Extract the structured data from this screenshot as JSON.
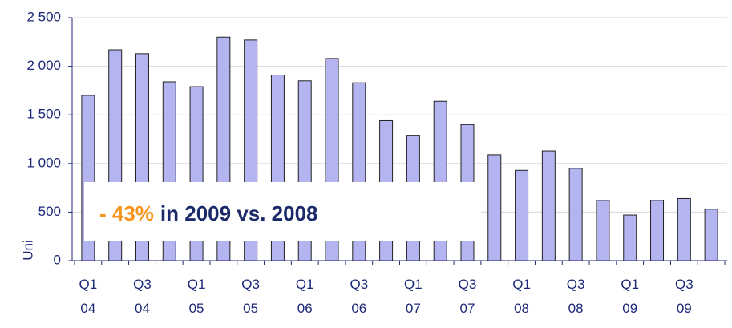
{
  "chart_data": {
    "type": "bar",
    "axis_label": "Uni",
    "annotation": {
      "highlight": "- 43%",
      "text": "in 2009 vs. 2008",
      "highlight_color": "#f7941d"
    },
    "categories": [
      "Q1 04",
      null,
      "Q3 04",
      null,
      "Q1 05",
      null,
      "Q3 05",
      null,
      "Q1 06",
      null,
      "Q3 06",
      null,
      "Q1 07",
      null,
      "Q3 07",
      null,
      "Q1 08",
      null,
      "Q3 08",
      null,
      "Q1 09",
      null,
      "Q3 09",
      null
    ],
    "values": [
      1700,
      2170,
      2130,
      1840,
      1790,
      2300,
      2270,
      1910,
      1850,
      2080,
      1830,
      1440,
      1290,
      1640,
      1400,
      1090,
      930,
      1130,
      950,
      620,
      470,
      620,
      640,
      530
    ],
    "color": "#b4b4f0",
    "ylim": [
      0,
      2500
    ],
    "yticks": [
      0,
      500,
      {
        "value": 1000,
        "label": "1 000"
      },
      {
        "value": 1500,
        "label": "1 500"
      },
      {
        "value": 2000,
        "label": "2 000"
      },
      {
        "value": 2500,
        "label": "2 500"
      }
    ],
    "grid": true
  }
}
